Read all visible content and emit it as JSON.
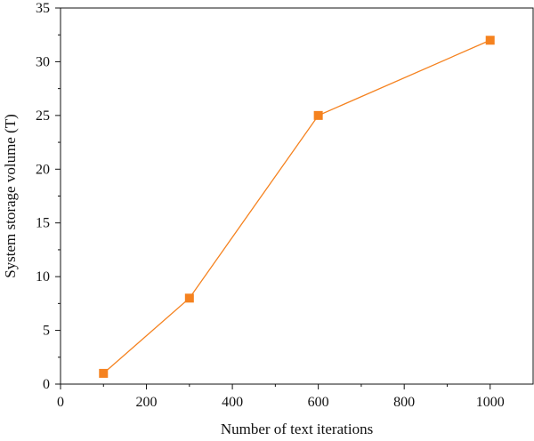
{
  "chart_data": {
    "type": "line",
    "title": "",
    "xlabel": "Number of text iterations",
    "ylabel": "System storage volume (T)",
    "xlim": [
      0,
      1100
    ],
    "ylim": [
      0,
      35
    ],
    "x_ticks": [
      0,
      200,
      400,
      600,
      800,
      1000
    ],
    "y_ticks": [
      0,
      5,
      10,
      15,
      20,
      25,
      30,
      35
    ],
    "grid": false,
    "legend": "none",
    "series": [
      {
        "color": "#F5821F",
        "marker": "square",
        "x": [
          100,
          300,
          600,
          1000
        ],
        "y": [
          1,
          8,
          25,
          32
        ]
      }
    ]
  }
}
